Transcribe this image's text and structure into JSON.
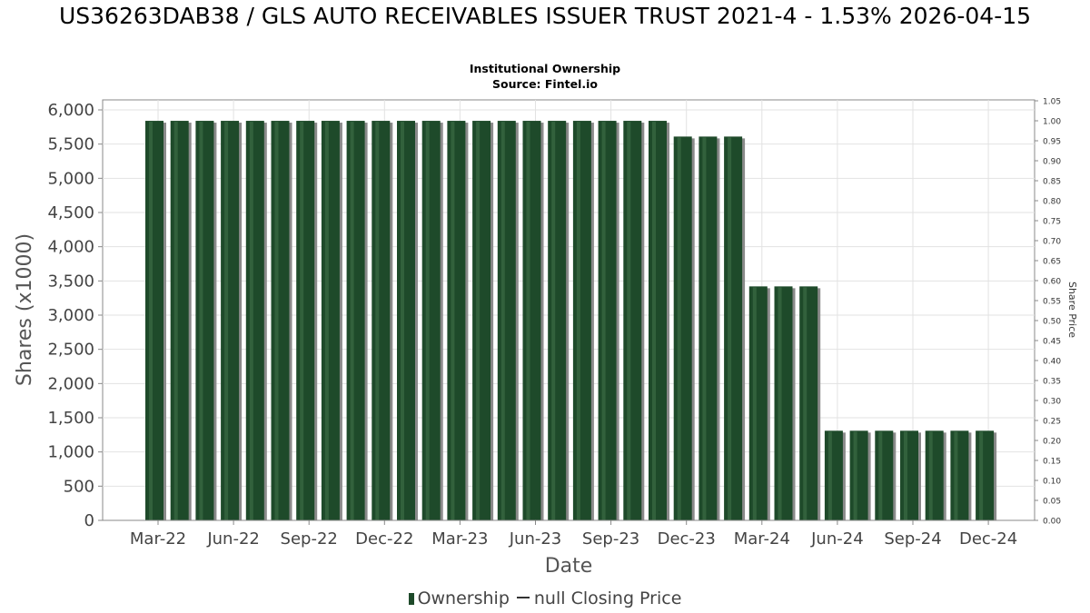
{
  "chart_data": {
    "type": "bar",
    "title": "US36263DAB38 / GLS AUTO RECEIVABLES ISSUER TRUST 2021-4 - 1.53% 2026-04-15",
    "subtitle": [
      "Institutional Ownership",
      "Source: Fintel.io"
    ],
    "xlabel": "Date",
    "ylabel": "Shares (x1000)",
    "y2label": "Share Price",
    "ylim": [
      0,
      6000
    ],
    "y2lim": [
      0,
      1.05
    ],
    "yticks": [
      "0",
      "500",
      "1,000",
      "1,500",
      "2,000",
      "2,500",
      "3,000",
      "3,500",
      "4,000",
      "4,500",
      "5,000",
      "5,500",
      "6,000"
    ],
    "y2ticks": [
      "0.00",
      "0.05",
      "0.10",
      "0.15",
      "0.20",
      "0.25",
      "0.30",
      "0.35",
      "0.40",
      "0.45",
      "0.50",
      "0.55",
      "0.60",
      "0.65",
      "0.70",
      "0.75",
      "0.80",
      "0.85",
      "0.90",
      "0.95",
      "1.00",
      "1.05"
    ],
    "xticks": [
      "Mar-22",
      "Jun-22",
      "Sep-22",
      "Dec-22",
      "Mar-23",
      "Jun-23",
      "Sep-23",
      "Dec-23",
      "Mar-24",
      "Jun-24",
      "Sep-24",
      "Dec-24"
    ],
    "grid": true,
    "legend_position": "bottom",
    "colors": {
      "bar": "#1e4a2a",
      "bar_highlight": "#3b6b45",
      "shadow": "#8a8a8a",
      "grid": "#e2e2e2",
      "axis": "#888888"
    },
    "series": [
      {
        "name": "Ownership",
        "values": [
          5840,
          5840,
          5840,
          5840,
          5840,
          5840,
          5840,
          5840,
          5840,
          5840,
          5840,
          5840,
          5840,
          5840,
          5840,
          5840,
          5840,
          5840,
          5840,
          5840,
          5840,
          5610,
          5610,
          5610,
          3420,
          3420,
          3420,
          1310,
          1310,
          1310,
          1310,
          1310,
          1310,
          1310
        ]
      },
      {
        "name": "null Closing Price",
        "values": []
      }
    ]
  }
}
